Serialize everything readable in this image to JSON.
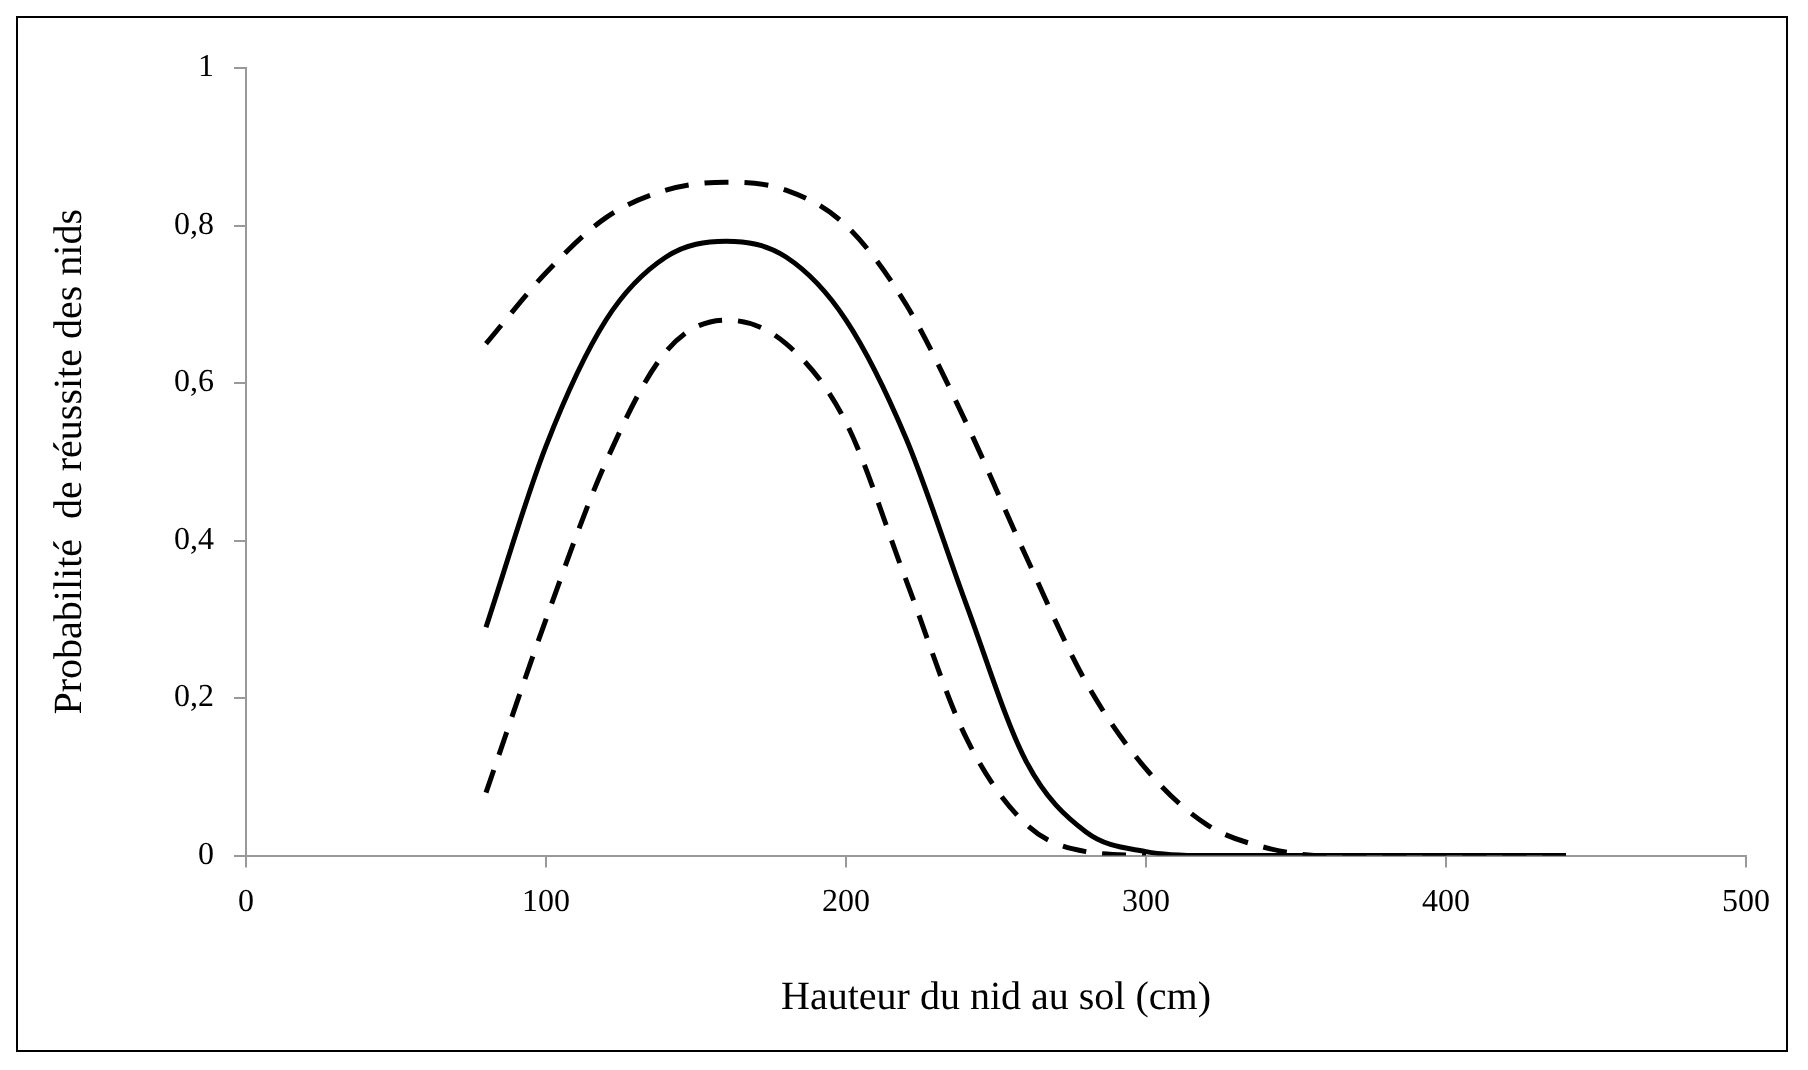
{
  "chart_data": {
    "type": "line",
    "xlabel": "Hauteur du nid au sol (cm)",
    "ylabel": "Probabilité  de réussite des nids",
    "marker": "none",
    "grid": false,
    "legend": false,
    "xlim": [
      0,
      500
    ],
    "xticks": [
      0,
      100,
      200,
      300,
      400,
      500
    ],
    "ylim": [
      0,
      1
    ],
    "yticks": [
      0,
      {
        "value": 0.2,
        "label": "0,2"
      },
      {
        "value": 0.4,
        "label": "0,4"
      },
      {
        "value": 0.6,
        "label": "0,6"
      },
      {
        "value": 0.8,
        "label": "0,8"
      },
      1
    ],
    "series": [
      {
        "color": "#000000",
        "line_style": "solid",
        "x": [
          80,
          100,
          120,
          140,
          160,
          180,
          200,
          220,
          240,
          260,
          280,
          300,
          320,
          440
        ],
        "values": [
          0.29,
          0.52,
          0.68,
          0.76,
          0.78,
          0.76,
          0.68,
          0.53,
          0.32,
          0.12,
          0.03,
          0.005,
          0,
          0
        ]
      },
      {
        "color": "#000000",
        "line_style": "dashed",
        "x": [
          80,
          100,
          120,
          140,
          160,
          180,
          200,
          220,
          240,
          260,
          280,
          300,
          320,
          340,
          360,
          440
        ],
        "values": [
          0.65,
          0.74,
          0.81,
          0.845,
          0.855,
          0.845,
          0.8,
          0.7,
          0.55,
          0.38,
          0.22,
          0.11,
          0.04,
          0.01,
          0,
          0
        ]
      },
      {
        "color": "#000000",
        "line_style": "dashed",
        "x": [
          80,
          100,
          120,
          140,
          160,
          180,
          200,
          220,
          240,
          260,
          280,
          300
        ],
        "values": [
          0.08,
          0.3,
          0.5,
          0.64,
          0.68,
          0.65,
          0.55,
          0.35,
          0.15,
          0.04,
          0.005,
          0
        ]
      }
    ]
  }
}
